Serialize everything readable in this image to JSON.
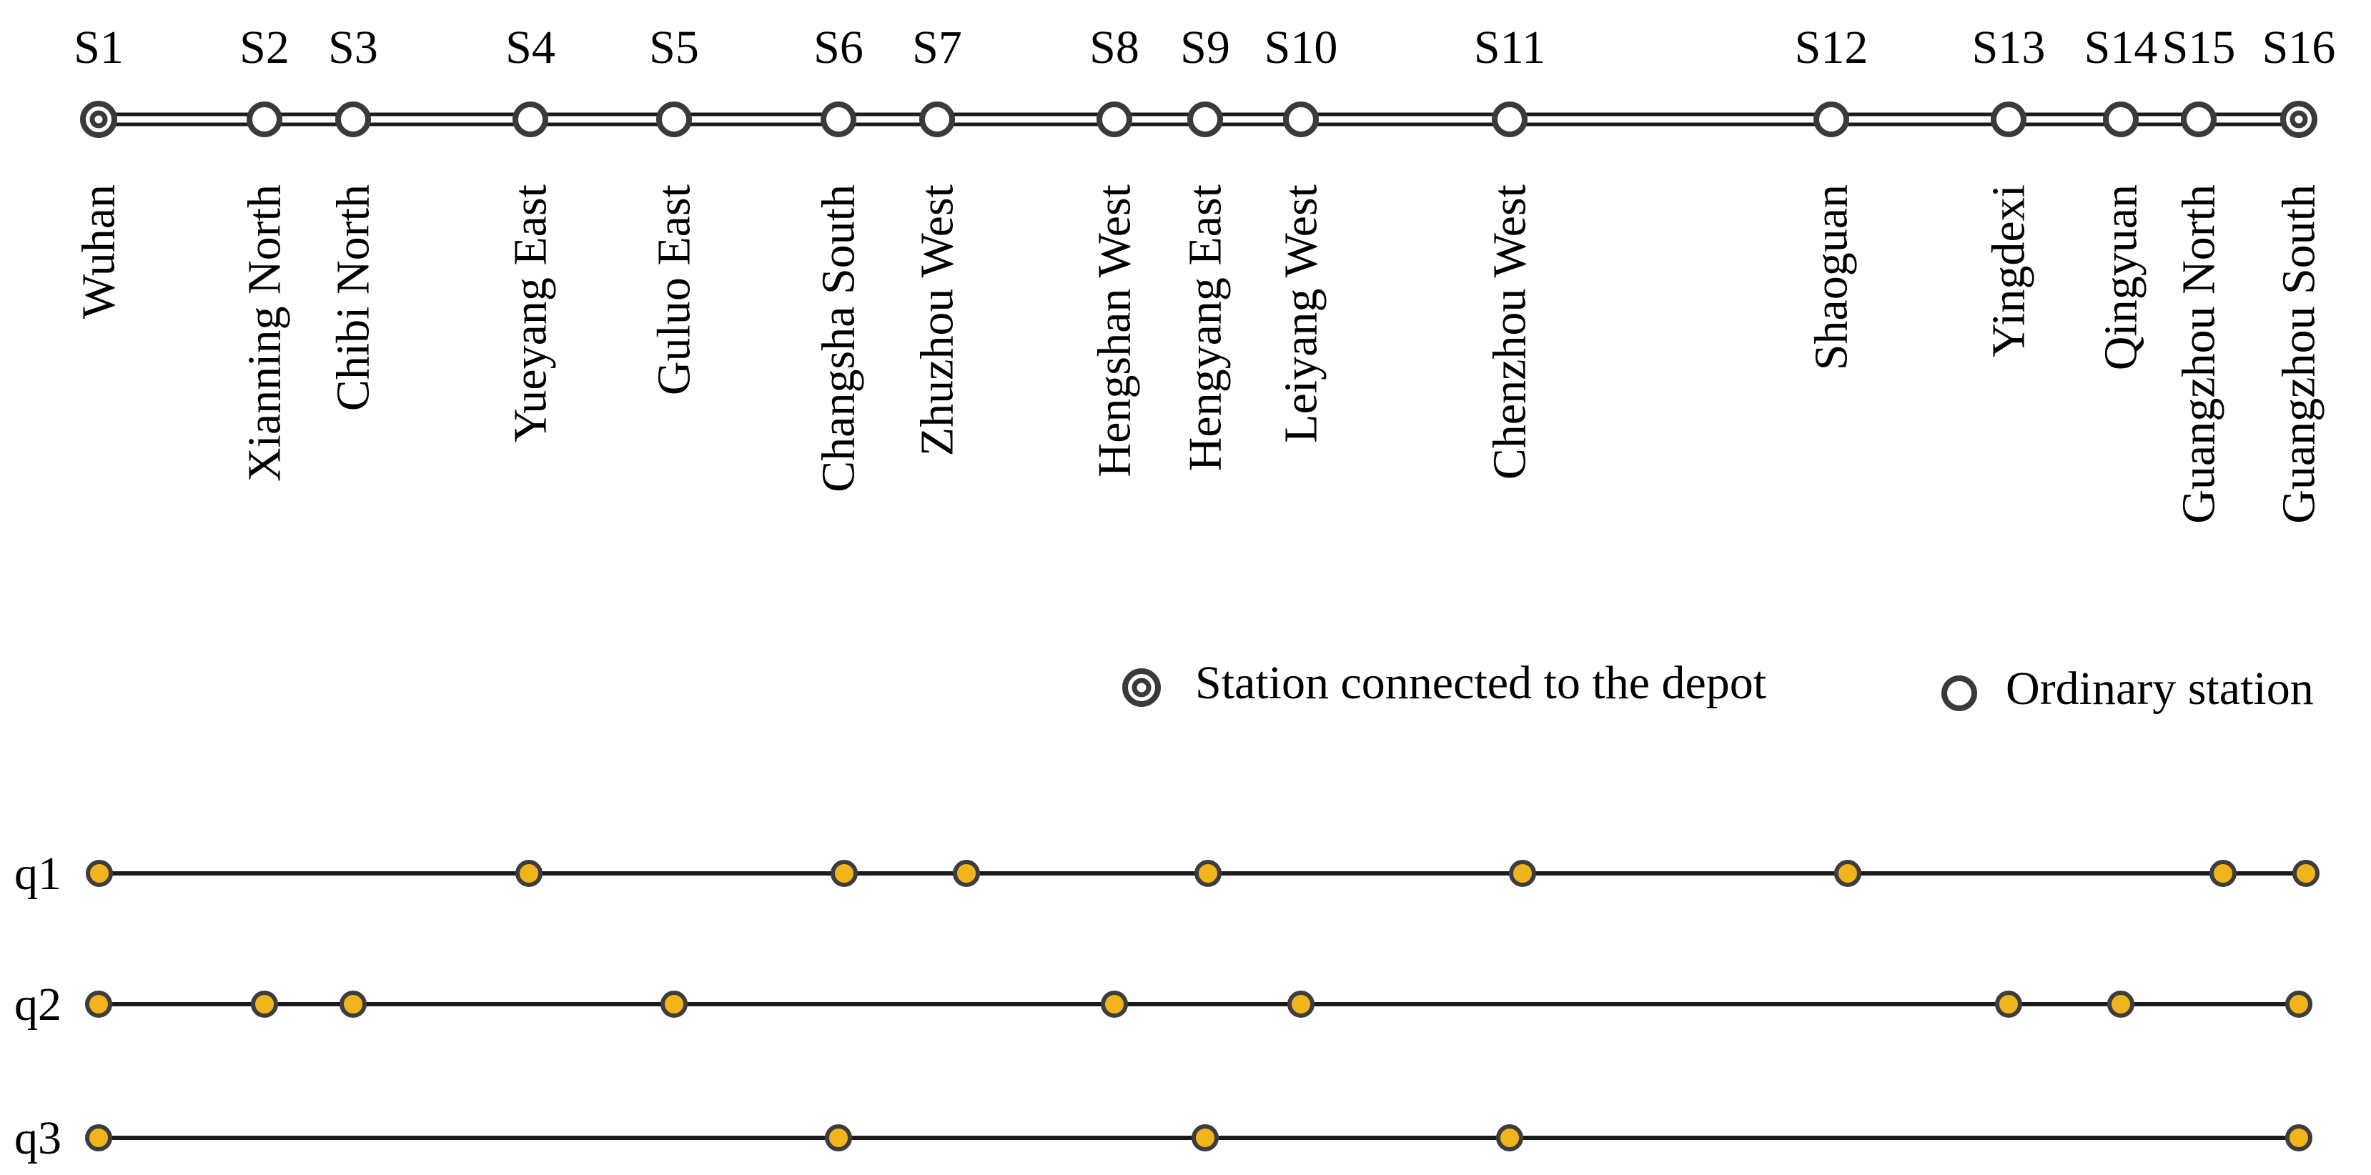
{
  "colors": {
    "track": "#1a1a1a",
    "station_ring": "#3a3a3a",
    "stop_fill": "#f2b41b",
    "stop_ring": "#3d3d3d",
    "background": "#ffffff"
  },
  "stations": [
    {
      "code": "S1",
      "name": "Wuhan",
      "depot": true
    },
    {
      "code": "S2",
      "name": "Xianning North",
      "depot": false
    },
    {
      "code": "S3",
      "name": "Chibi North",
      "depot": false
    },
    {
      "code": "S4",
      "name": "Yueyang East",
      "depot": false
    },
    {
      "code": "S5",
      "name": "Guluo East",
      "depot": false
    },
    {
      "code": "S6",
      "name": "Changsha South",
      "depot": false
    },
    {
      "code": "S7",
      "name": "Zhuzhou West",
      "depot": false
    },
    {
      "code": "S8",
      "name": "Hengshan West",
      "depot": false
    },
    {
      "code": "S9",
      "name": "Hengyang East",
      "depot": false
    },
    {
      "code": "S10",
      "name": "Leiyang West",
      "depot": false
    },
    {
      "code": "S11",
      "name": "Chenzhou West",
      "depot": false
    },
    {
      "code": "S12",
      "name": "Shaoguan",
      "depot": false
    },
    {
      "code": "S13",
      "name": "Yingdexi",
      "depot": false
    },
    {
      "code": "S14",
      "name": "Qingyuan",
      "depot": false
    },
    {
      "code": "S15",
      "name": "Guangzhou North",
      "depot": false
    },
    {
      "code": "S16",
      "name": "Guangzhou South",
      "depot": true
    }
  ],
  "legend": {
    "depot_label": "Station connected to the depot",
    "ordinary_label": "Ordinary station",
    "depot_icon": "double-ring-icon",
    "ordinary_icon": "ring-icon"
  },
  "services": [
    {
      "label": "q1",
      "stops": [
        "S1",
        "S4",
        "S6",
        "S7",
        "S9",
        "S11",
        "S12",
        "S15",
        "S16"
      ]
    },
    {
      "label": "q2",
      "stops": [
        "S1",
        "S2",
        "S3",
        "S5",
        "S8",
        "S10",
        "S13",
        "S14",
        "S16"
      ]
    },
    {
      "label": "q3",
      "stops": [
        "S1",
        "S6",
        "S9",
        "S11",
        "S16"
      ]
    }
  ]
}
